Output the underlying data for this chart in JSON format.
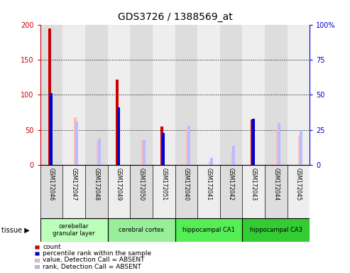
{
  "title": "GDS3726 / 1388569_at",
  "samples": [
    "GSM172046",
    "GSM172047",
    "GSM172048",
    "GSM172049",
    "GSM172050",
    "GSM172051",
    "GSM172040",
    "GSM172041",
    "GSM172042",
    "GSM172043",
    "GSM172044",
    "GSM172045"
  ],
  "count": [
    195,
    0,
    0,
    122,
    0,
    55,
    0,
    0,
    0,
    65,
    0,
    0
  ],
  "percentile_rank": [
    51,
    0,
    0,
    41,
    0,
    23,
    0,
    0,
    0,
    33,
    0,
    0
  ],
  "value_absent": [
    0,
    68,
    34,
    0,
    36,
    0,
    50,
    5,
    18,
    0,
    51,
    42
  ],
  "rank_absent": [
    0,
    31,
    19,
    0,
    18,
    0,
    28,
    5,
    14,
    0,
    30,
    25
  ],
  "tissues_list": [
    [
      "cerebellar\ngranular layer",
      0,
      3,
      "#bbffbb"
    ],
    [
      "cerebral cortex",
      3,
      6,
      "#99ee99"
    ],
    [
      "hippocampal CA1",
      6,
      9,
      "#55ee55"
    ],
    [
      "hippocampal CA3",
      9,
      12,
      "#33cc33"
    ]
  ],
  "ylim_left": [
    0,
    200
  ],
  "ylim_right": [
    0,
    100
  ],
  "yticks_left": [
    0,
    50,
    100,
    150,
    200
  ],
  "ytick_labels_left": [
    "0",
    "50",
    "100",
    "150",
    "200"
  ],
  "ytick_labels_right": [
    "0",
    "25",
    "50",
    "75",
    "100%"
  ],
  "count_color": "#cc0000",
  "percentile_color": "#0000cc",
  "value_absent_color": "#ffbbbb",
  "rank_absent_color": "#bbbbff",
  "col_bg_even": "#dddddd",
  "col_bg_odd": "#eeeeee"
}
